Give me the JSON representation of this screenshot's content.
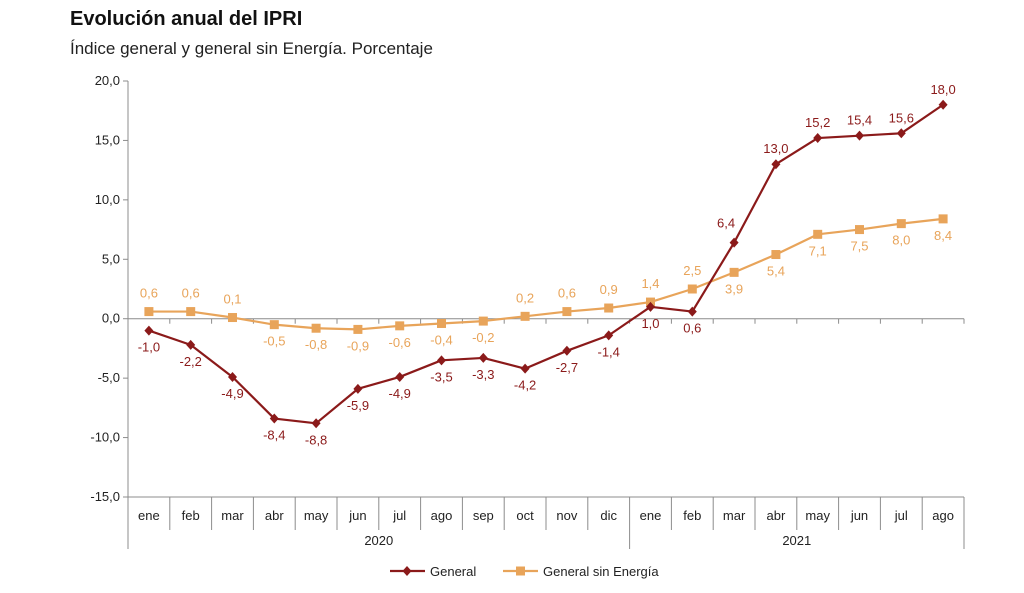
{
  "title": "Evolución anual del IPRI",
  "subtitle": "Índice general y general sin Energía. Porcentaje",
  "colors": {
    "general": "#8B1A1A",
    "sin_energia": "#E8A45A",
    "axis": "#8c8c8c"
  },
  "chart_data": {
    "type": "line",
    "title": "Evolución anual del IPRI",
    "subtitle": "Índice general y general sin Energía. Porcentaje",
    "categories": [
      "ene",
      "feb",
      "mar",
      "abr",
      "may",
      "jun",
      "jul",
      "ago",
      "sep",
      "oct",
      "nov",
      "dic",
      "ene",
      "feb",
      "mar",
      "abr",
      "may",
      "jun",
      "jul",
      "ago"
    ],
    "groups": [
      {
        "label": "2020",
        "start": 0,
        "end": 11
      },
      {
        "label": "2021",
        "start": 12,
        "end": 19
      }
    ],
    "ylim": [
      -15,
      20
    ],
    "yticks": [
      -15,
      -10,
      -5,
      0,
      5,
      10,
      15,
      20
    ],
    "ytick_labels": [
      "-15,0",
      "-10,0",
      "-5,0",
      "0,0",
      "5,0",
      "10,0",
      "15,0",
      "20,0"
    ],
    "grid": false,
    "legend_position": "bottom",
    "series": [
      {
        "name": "General",
        "color": "#8B1A1A",
        "marker": "diamond",
        "values": [
          -1.0,
          -2.2,
          -4.9,
          -8.4,
          -8.8,
          -5.9,
          -4.9,
          -3.5,
          -3.3,
          -4.2,
          -2.7,
          -1.4,
          1.0,
          0.6,
          6.4,
          13.0,
          15.2,
          15.4,
          15.6,
          18.0
        ],
        "labels": [
          "-1,0",
          "-2,2",
          "-4,9",
          "-8,4",
          "-8,8",
          "-5,9",
          "-4,9",
          "-3,5",
          "-3,3",
          "-4,2",
          "-2,7",
          "-1,4",
          "1,0",
          "0,6",
          "6,4",
          "13,0",
          "15,2",
          "15,4",
          "15,6",
          "18,0"
        ]
      },
      {
        "name": "General sin Energía",
        "color": "#E8A45A",
        "marker": "square",
        "values": [
          0.6,
          0.6,
          0.1,
          -0.5,
          -0.8,
          -0.9,
          -0.6,
          -0.4,
          -0.2,
          0.2,
          0.6,
          0.9,
          1.4,
          2.5,
          3.9,
          5.4,
          7.1,
          7.5,
          8.0,
          8.4
        ],
        "labels": [
          "0,6",
          "0,6",
          "0,1",
          "-0,5",
          "-0,8",
          "-0,9",
          "-0,6",
          "-0,4",
          "-0,2",
          "0,2",
          "0,6",
          "0,9",
          "1,4",
          "2,5",
          "3,9",
          "5,4",
          "7,1",
          "7,5",
          "8,0",
          "8,4"
        ]
      }
    ]
  }
}
